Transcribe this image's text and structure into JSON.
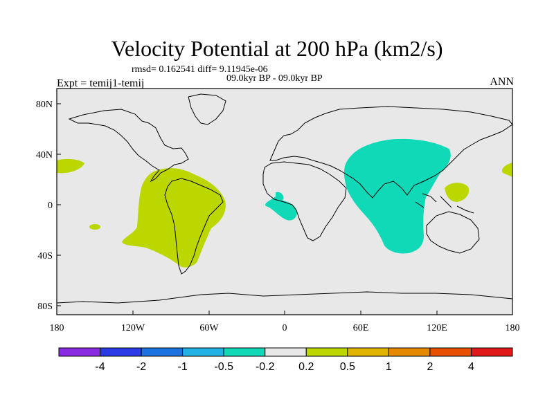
{
  "header": {
    "title": "Velocity Potential at 200 hPa (km2/s)",
    "stats": "rmsd= 0.162541 diff= 9.11945e-06",
    "period": "09.0kyr BP - 09.0kyr BP",
    "experiment": "Expt = temij1-temij",
    "season": "ANN"
  },
  "axes": {
    "y_labels": [
      "80N",
      "40N",
      "0",
      "40S",
      "80S"
    ],
    "x_labels": [
      "180",
      "120W",
      "60W",
      "0",
      "60E",
      "120E",
      "180"
    ]
  },
  "colorbar": {
    "colors": [
      "#8a2be2",
      "#2b3be6",
      "#1a73e0",
      "#22b2e6",
      "#10d9b8",
      "#e8e8e8",
      "#bcd600",
      "#e0b400",
      "#e58a00",
      "#e85000",
      "#e01818"
    ],
    "labels": [
      "-4",
      "-2",
      "-1",
      "-0.5",
      "-0.2",
      "0.2",
      "0.5",
      "1",
      "2",
      "4"
    ]
  },
  "colors": {
    "ocean_land_bg": "#e8e8e8",
    "positive_fill": "#bcd600",
    "negative_fill": "#10d9b8"
  }
}
